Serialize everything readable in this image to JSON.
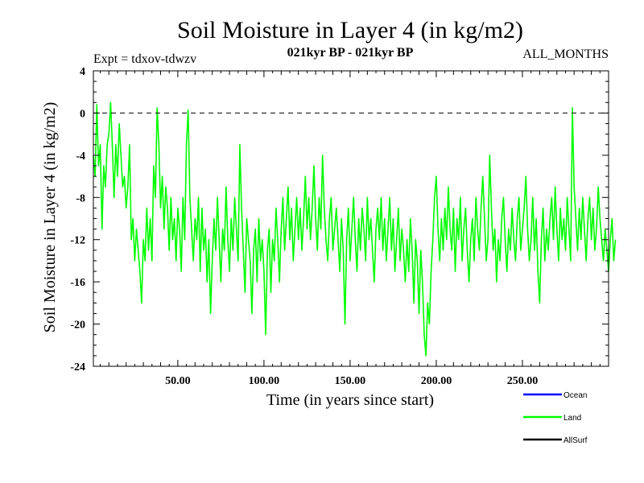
{
  "chart_data": {
    "type": "line",
    "title": "Soil Moisture in Layer 4 (in kg/m2)",
    "subtitle_left": "Expt = tdxov-tdwzv",
    "subtitle_center": "021kyr BP - 021kyr BP",
    "subtitle_right": "ALL_MONTHS",
    "xlabel": "Time (in years since start)",
    "ylabel": "Soil Moisture in Layer 4 (in kg/m2)",
    "xlim": [
      1,
      300
    ],
    "ylim": [
      -24,
      4
    ],
    "xticks": [
      50,
      100,
      150,
      200,
      250
    ],
    "xtick_labels": [
      "50.00",
      "100.00",
      "150.00",
      "200.00",
      "250.00"
    ],
    "yticks": [
      4,
      0,
      -4,
      -8,
      -12,
      -16,
      -20,
      -24
    ],
    "ytick_labels": [
      "4",
      "0",
      "-4",
      "-8",
      "-12",
      "-16",
      "-20",
      "-24"
    ],
    "reference_line": 0,
    "legend_position": "bottom-right",
    "series": [
      {
        "name": "Ocean",
        "color": "#0000ff",
        "values": []
      },
      {
        "name": "Land",
        "color": "#00ff00",
        "x_start": 1,
        "x_step": 1,
        "values": [
          -4,
          -6,
          0.8,
          -5,
          -3,
          -11,
          -5,
          -7,
          -3,
          -2,
          1,
          -3,
          -8,
          -3,
          -6,
          -1,
          -4,
          -7,
          -6,
          -9,
          -7,
          -3,
          -12,
          -10,
          -14,
          -11,
          -13,
          -15,
          -18,
          -12,
          -14,
          -9,
          -13,
          -10,
          -14,
          -5,
          -8,
          0.5,
          -3,
          -9,
          -6,
          -11,
          -7,
          -9,
          -13,
          -8,
          -12,
          -10,
          -14,
          -9,
          -11,
          -15,
          -8,
          -12,
          -3,
          0.3,
          -8,
          -11,
          -14,
          -10,
          -12,
          -8,
          -15,
          -9,
          -13,
          -11,
          -16,
          -12,
          -19,
          -14,
          -10,
          -13,
          -8,
          -12,
          -16,
          -11,
          -13,
          -7,
          -12,
          -15,
          -10,
          -13,
          -8,
          -11,
          -14,
          -3,
          -9,
          -13,
          -17,
          -10,
          -12,
          -14,
          -19,
          -13,
          -11,
          -16,
          -10,
          -14,
          -12,
          -15,
          -21,
          -13,
          -11,
          -17,
          -12,
          -14,
          -9,
          -12,
          -16,
          -11,
          -8,
          -13,
          -10,
          -7,
          -12,
          -9,
          -14,
          -11,
          -8,
          -12,
          -9,
          -13,
          -10,
          -6,
          -11,
          -8,
          -12,
          -9,
          -5,
          -10,
          -13,
          -8,
          -11,
          -4,
          -9,
          -12,
          -14,
          -10,
          -8,
          -13,
          -11,
          -9,
          -12,
          -15,
          -10,
          -13,
          -20,
          -12,
          -9,
          -14,
          -11,
          -8,
          -12,
          -15,
          -10,
          -13,
          -9,
          -11,
          -14,
          -8,
          -12,
          -10,
          -13,
          -16,
          -11,
          -9,
          -12,
          -8,
          -13,
          -10,
          -14,
          -11,
          -8,
          -13,
          -10,
          -15,
          -12,
          -9,
          -14,
          -11,
          -13,
          -16,
          -12,
          -15,
          -10,
          -13,
          -18,
          -12,
          -14,
          -19,
          -13,
          -16,
          -21,
          -23,
          -18,
          -20,
          -15,
          -12,
          -8,
          -6,
          -11,
          -14,
          -10,
          -13,
          -9,
          -12,
          -7,
          -11,
          -13,
          -9,
          -15,
          -10,
          -12,
          -8,
          -14,
          -11,
          -9,
          -13,
          -16,
          -12,
          -10,
          -14,
          -8,
          -11,
          -13,
          -9,
          -6,
          -10,
          -14,
          -12,
          -4,
          -9,
          -13,
          -11,
          -16,
          -12,
          -14,
          -10,
          -8,
          -12,
          -15,
          -11,
          -13,
          -9,
          -12,
          -14,
          -10,
          -8,
          -13,
          -11,
          -9,
          -6,
          -11,
          -14,
          -12,
          -8,
          -13,
          -10,
          -15,
          -18,
          -12,
          -9,
          -14,
          -11,
          -13,
          -10,
          -8,
          -12,
          -7,
          -11,
          -14,
          -9,
          -12,
          -10,
          -13,
          -8,
          -11,
          -14,
          0.5,
          -7,
          -10,
          -13,
          -9,
          -12,
          -8,
          -11,
          -14,
          -10,
          -8,
          -12,
          -9,
          -13,
          -11,
          -7,
          -10,
          -12,
          -14,
          -11,
          -13,
          -15,
          -12,
          -10,
          -14,
          -12
        ]
      },
      {
        "name": "AllSurf",
        "color": "#000000",
        "values": []
      }
    ]
  }
}
